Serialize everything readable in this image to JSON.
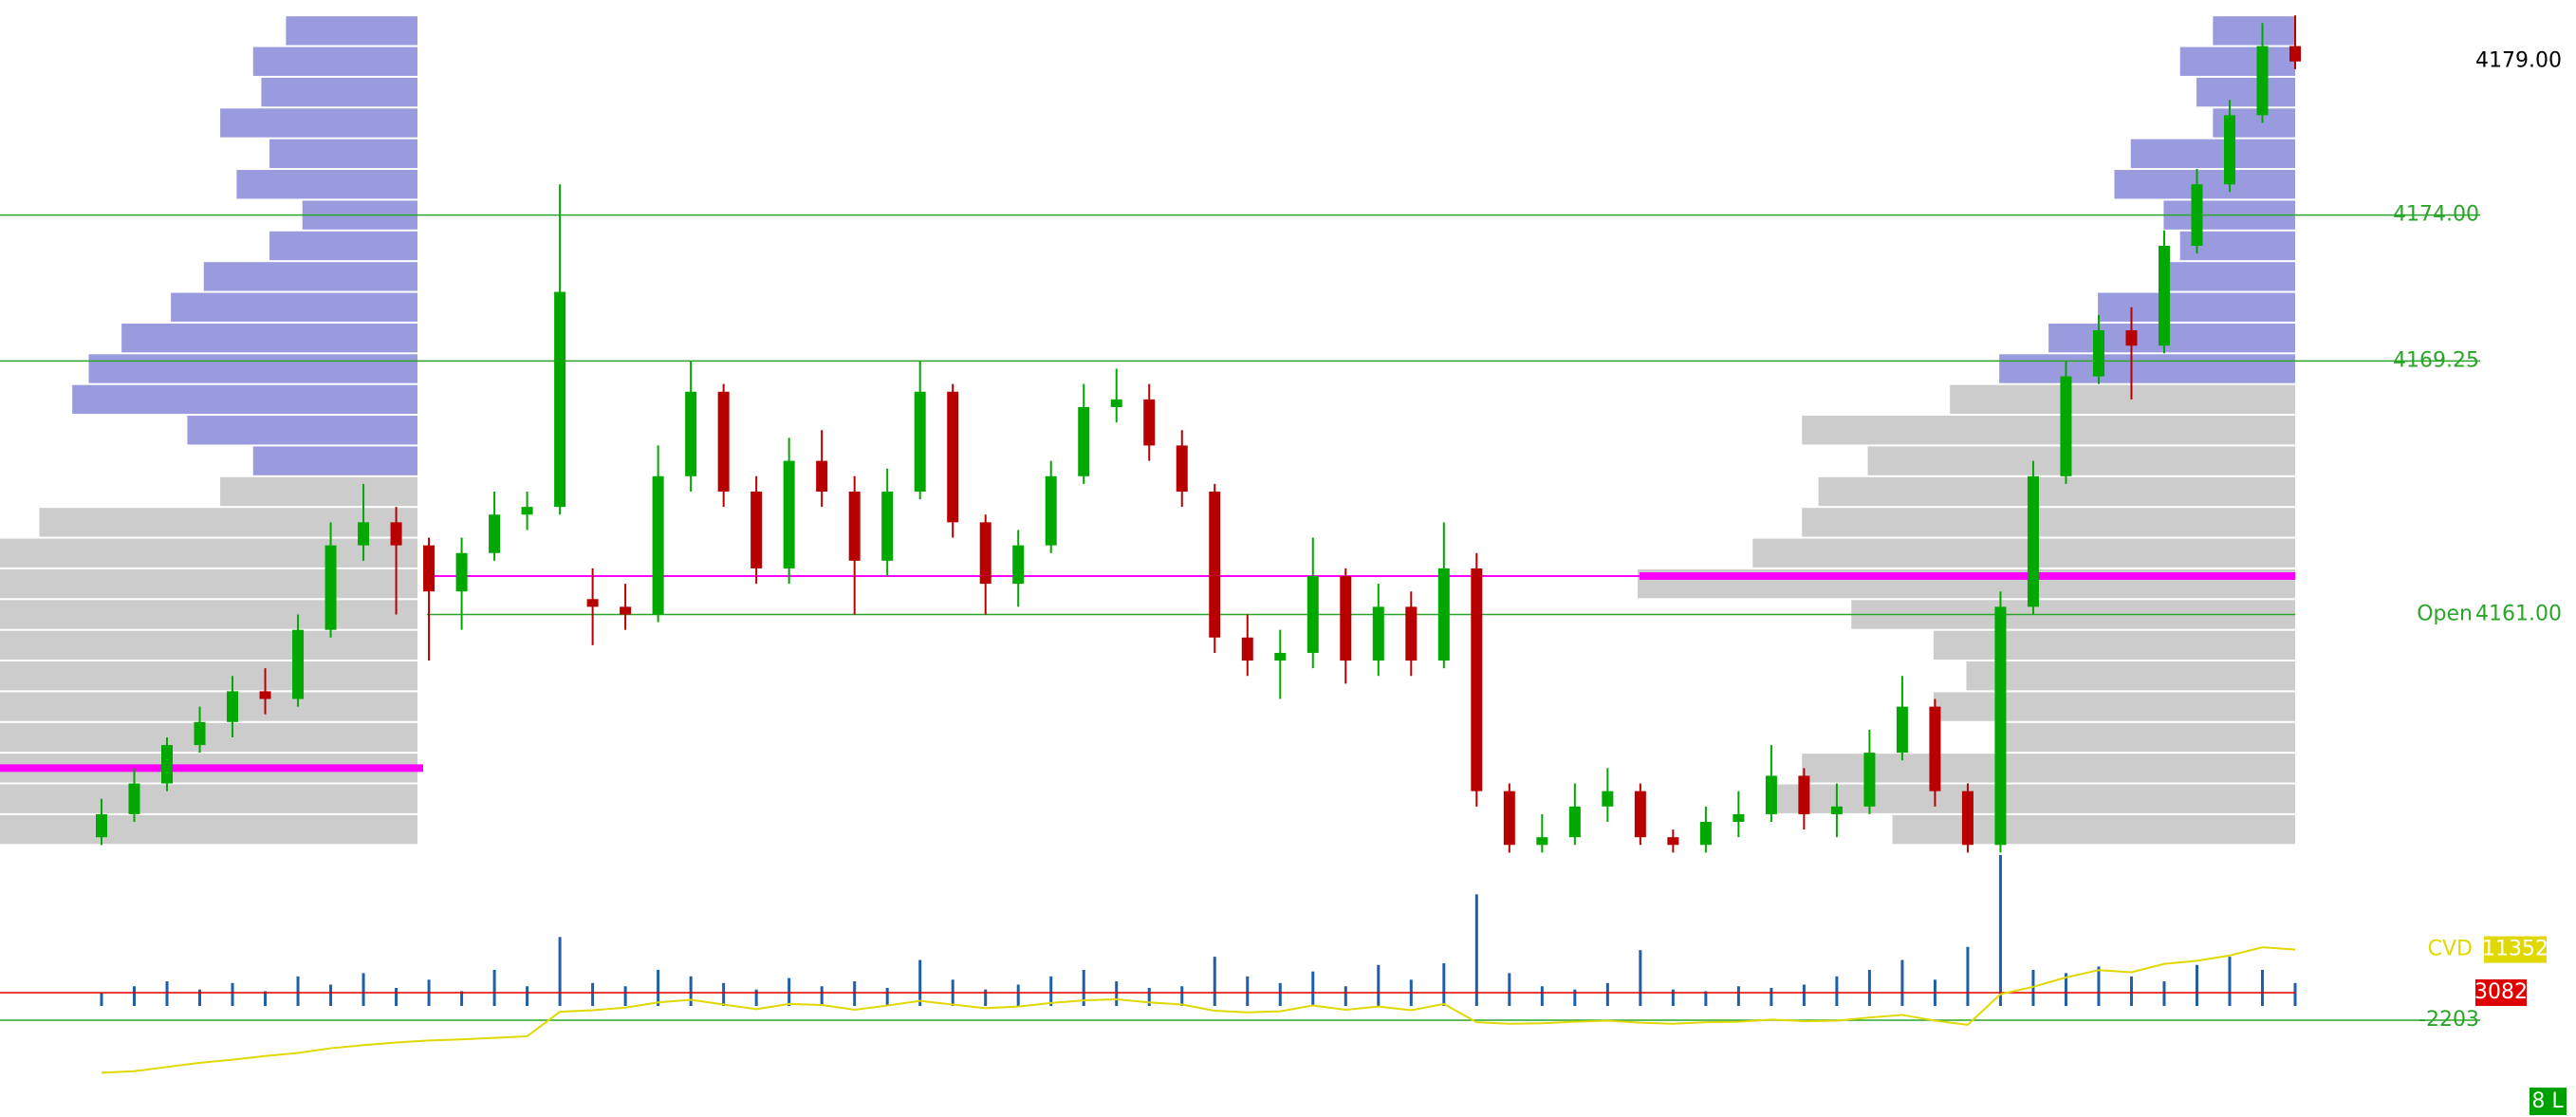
{
  "chart_data": {
    "type": "candlestick",
    "ylim": [
      4153.2,
      4181.0
    ],
    "last_price": {
      "value": 4179,
      "label": "4179.00"
    },
    "levels": [
      {
        "value": 4174,
        "label": "4174.00"
      },
      {
        "value": 4169.25,
        "label": "4169.25"
      },
      {
        "value": 4161,
        "label": "4161.00"
      }
    ],
    "open_label": "Open",
    "poc_levels": [
      4162.25,
      4156
    ],
    "up_color": "#00a800",
    "down_color": "#b80000",
    "level_color": "#2aa52a",
    "poc_color": "#ff00ff",
    "ohlc": [
      [
        4153.75,
        4155,
        4153.5,
        4154.5
      ],
      [
        4154.5,
        4156,
        4154.25,
        4155.5
      ],
      [
        4155.5,
        4157,
        4155.25,
        4156.75
      ],
      [
        4156.75,
        4158,
        4156.5,
        4157.5
      ],
      [
        4157.5,
        4159,
        4157,
        4158.5
      ],
      [
        4158.5,
        4159.25,
        4157.75,
        4158.25
      ],
      [
        4158.25,
        4161,
        4158,
        4160.5
      ],
      [
        4160.5,
        4164,
        4160.25,
        4163.25
      ],
      [
        4163.25,
        4165.25,
        4162.75,
        4164
      ],
      [
        4164,
        4164.5,
        4161,
        4163.25
      ],
      [
        4163.25,
        4163.5,
        4159.5,
        4161.75
      ],
      [
        4161.75,
        4163.5,
        4160.5,
        4163
      ],
      [
        4163,
        4165,
        4162.75,
        4164.25
      ],
      [
        4164.25,
        4165,
        4163.75,
        4164.5
      ],
      [
        4164.5,
        4175,
        4164.25,
        4171.5
      ],
      [
        4161.5,
        4162.5,
        4160,
        4161.25
      ],
      [
        4161.25,
        4162,
        4160.5,
        4161
      ],
      [
        4161,
        4166.5,
        4160.75,
        4165.5
      ],
      [
        4165.5,
        4169.25,
        4165,
        4168.25
      ],
      [
        4168.25,
        4168.5,
        4164.5,
        4165
      ],
      [
        4165,
        4165.5,
        4162,
        4162.5
      ],
      [
        4162.5,
        4166.75,
        4162,
        4166
      ],
      [
        4166,
        4167,
        4164.5,
        4165
      ],
      [
        4165,
        4165.5,
        4161,
        4162.75
      ],
      [
        4162.75,
        4165.75,
        4162.25,
        4165
      ],
      [
        4165,
        4169.25,
        4164.75,
        4168.25
      ],
      [
        4168.25,
        4168.5,
        4163.5,
        4164
      ],
      [
        4164,
        4164.25,
        4161,
        4162
      ],
      [
        4162,
        4163.75,
        4161.25,
        4163.25
      ],
      [
        4163.25,
        4166,
        4163,
        4165.5
      ],
      [
        4165.5,
        4168.5,
        4165.25,
        4167.75
      ],
      [
        4167.75,
        4169,
        4167.25,
        4168
      ],
      [
        4168,
        4168.5,
        4166,
        4166.5
      ],
      [
        4166.5,
        4167,
        4164.5,
        4165
      ],
      [
        4165,
        4165.25,
        4159.75,
        4160.25
      ],
      [
        4160.25,
        4161,
        4159,
        4159.5
      ],
      [
        4159.5,
        4160.5,
        4158.25,
        4159.75
      ],
      [
        4159.75,
        4163.5,
        4159.25,
        4162.25
      ],
      [
        4162.25,
        4162.5,
        4158.75,
        4159.5
      ],
      [
        4159.5,
        4162,
        4159,
        4161.25
      ],
      [
        4161.25,
        4161.75,
        4159,
        4159.5
      ],
      [
        4159.5,
        4164,
        4159.25,
        4162.5
      ],
      [
        4162.5,
        4163,
        4154.75,
        4155.25
      ],
      [
        4155.25,
        4155.5,
        4153.25,
        4153.5
      ],
      [
        4153.5,
        4154.5,
        4153.25,
        4153.75
      ],
      [
        4153.75,
        4155.5,
        4153.5,
        4154.75
      ],
      [
        4154.75,
        4156,
        4154.25,
        4155.25
      ],
      [
        4155.25,
        4155.5,
        4153.5,
        4153.75
      ],
      [
        4153.75,
        4154,
        4153.25,
        4153.5
      ],
      [
        4153.5,
        4154.75,
        4153.25,
        4154.25
      ],
      [
        4154.25,
        4155.25,
        4153.75,
        4154.5
      ],
      [
        4154.5,
        4156.75,
        4154.25,
        4155.75
      ],
      [
        4155.75,
        4156,
        4154,
        4154.5
      ],
      [
        4154.5,
        4155.5,
        4153.75,
        4154.75
      ],
      [
        4154.75,
        4157.25,
        4154.5,
        4156.5
      ],
      [
        4156.5,
        4159,
        4156.25,
        4158
      ],
      [
        4158,
        4158.25,
        4154.75,
        4155.25
      ],
      [
        4155.25,
        4155.5,
        4153.25,
        4153.5
      ],
      [
        4153.5,
        4161.75,
        4153.25,
        4161.25
      ],
      [
        4161.25,
        4166,
        4161,
        4165.5
      ],
      [
        4165.5,
        4169.25,
        4165.25,
        4168.75
      ],
      [
        4168.75,
        4170.75,
        4168.5,
        4170.25
      ],
      [
        4170.25,
        4171,
        4168,
        4169.75
      ],
      [
        4169.75,
        4173.5,
        4169.5,
        4173
      ],
      [
        4173,
        4175.5,
        4172.75,
        4175
      ],
      [
        4175,
        4177.75,
        4174.75,
        4177.25
      ],
      [
        4177.25,
        4180.25,
        4177,
        4179.5
      ],
      [
        4179.5,
        4180.5,
        4178.75,
        4179
      ]
    ],
    "volume": {
      "color": "#1f5fa8",
      "vlim": [
        0,
        100
      ],
      "values": [
        8,
        12,
        15,
        10,
        14,
        9,
        18,
        13,
        20,
        11,
        16,
        9,
        22,
        12,
        42,
        14,
        12,
        22,
        18,
        14,
        10,
        17,
        12,
        15,
        11,
        28,
        16,
        10,
        13,
        18,
        22,
        15,
        11,
        12,
        30,
        18,
        14,
        21,
        12,
        25,
        16,
        26,
        68,
        20,
        12,
        10,
        14,
        34,
        10,
        9,
        12,
        11,
        13,
        18,
        22,
        28,
        16,
        36,
        92,
        22,
        20,
        24,
        18,
        15,
        25,
        30,
        22,
        14
      ]
    },
    "cvd": {
      "name": "CVD",
      "color": "#e0d800",
      "values": [
        -12300,
        -12000,
        -11200,
        -10400,
        -9800,
        -9100,
        -8500,
        -7600,
        -7000,
        -6500,
        -6100,
        -5900,
        -5600,
        -5300,
        -600,
        -300,
        200,
        1200,
        1700,
        800,
        -100,
        900,
        700,
        -200,
        600,
        1500,
        800,
        100,
        400,
        1100,
        1600,
        1800,
        1200,
        800,
        -400,
        -700,
        -500,
        600,
        -200,
        400,
        -300,
        900,
        -2600,
        -2900,
        -2800,
        -2500,
        -2300,
        -2700,
        -2900,
        -2600,
        -2500,
        -2100,
        -2400,
        -2300,
        -1700,
        -1200,
        -2300,
        -3100,
        2800,
        4200,
        6000,
        7400,
        7000,
        8600,
        9200,
        10200,
        11800,
        11352
      ]
    },
    "y2lim": [
      -20800,
      23300
    ],
    "y2ticks": [
      -2203,
      3082
    ],
    "profiles": [
      {
        "prices": [
          4154,
          4155,
          4156,
          4157,
          4158,
          4159,
          4160,
          4161,
          4162,
          4163,
          4164,
          4165,
          4166,
          4167,
          4168,
          4169,
          4170,
          4171,
          4172,
          4173,
          4174,
          4175,
          4176,
          4177,
          4178,
          4179,
          4180
        ],
        "values": [
          254,
          254,
          254,
          254,
          254,
          254,
          254,
          254,
          254,
          254,
          230,
          120,
          100,
          140,
          210,
          200,
          180,
          150,
          130,
          90,
          70,
          110,
          90,
          120,
          95,
          100,
          80
        ],
        "split": 4165.25,
        "xlim": [
          0,
          400
        ]
      },
      {
        "prices": [
          4154,
          4155,
          4156,
          4157,
          4158,
          4159,
          4160,
          4161,
          4162,
          4163,
          4164,
          4165,
          4166,
          4167,
          4168,
          4169,
          4170,
          4171,
          4172,
          4173,
          4174,
          4175,
          4176,
          4177,
          4178,
          4179,
          4180
        ],
        "values": [
          245,
          320,
          300,
          180,
          220,
          200,
          220,
          270,
          400,
          330,
          300,
          290,
          260,
          300,
          210,
          180,
          150,
          120,
          80,
          70,
          80,
          110,
          100,
          50,
          60,
          70,
          50
        ],
        "split": 4168.5,
        "xlim": [
          0,
          400
        ]
      }
    ],
    "profile_colors": [
      "#cccccc",
      "#9a9ade"
    ],
    "status": "8 L"
  }
}
